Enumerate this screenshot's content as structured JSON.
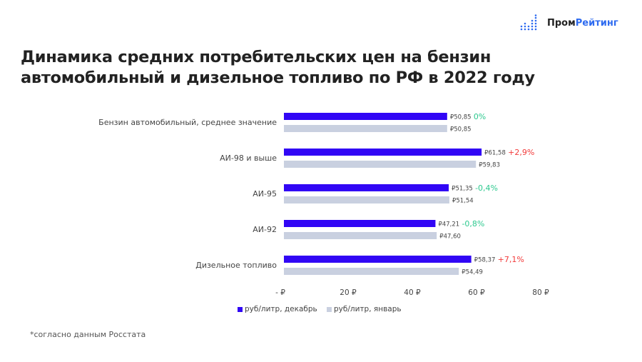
{
  "logo": {
    "part1": "Пром",
    "part2": "Рейтинг"
  },
  "title": "Динамика средних потребительских цен на бензин автомобильный и дизельное топливо по РФ в 2022 году",
  "footnote": "*согласно данным Росстата",
  "colors": {
    "december": "#3106f5",
    "january": "#c9d0e0",
    "positive": "#f23a3a",
    "negative": "#2ec98f"
  },
  "chart_data": {
    "type": "bar",
    "orientation": "horizontal",
    "categories": [
      "Бензин автомобильный, среднее значение",
      "АИ-98 и выше",
      "АИ-95",
      "АИ-92",
      "Дизельное топливо"
    ],
    "series": [
      {
        "name": "руб/литр, декабрь",
        "values": [
          50.85,
          61.58,
          51.35,
          47.21,
          58.37
        ],
        "labels": [
          "₽50,85",
          "₽61,58",
          "₽51,35",
          "₽47,21",
          "₽58,37"
        ]
      },
      {
        "name": "руб/литр, январь",
        "values": [
          50.85,
          59.83,
          51.54,
          47.6,
          54.49
        ],
        "labels": [
          "₽50,85",
          "₽59,83",
          "₽51,54",
          "₽47,60",
          "₽54,49"
        ]
      }
    ],
    "changes": [
      "0%",
      "+2,9%",
      "-0,4%",
      "-0,8%",
      "+7,1%"
    ],
    "xlim": [
      0,
      80
    ],
    "xticks": [
      "-  ₽",
      "20 ₽",
      "40 ₽",
      "60 ₽",
      "80 ₽"
    ],
    "grid": false,
    "legend": "bottom"
  }
}
